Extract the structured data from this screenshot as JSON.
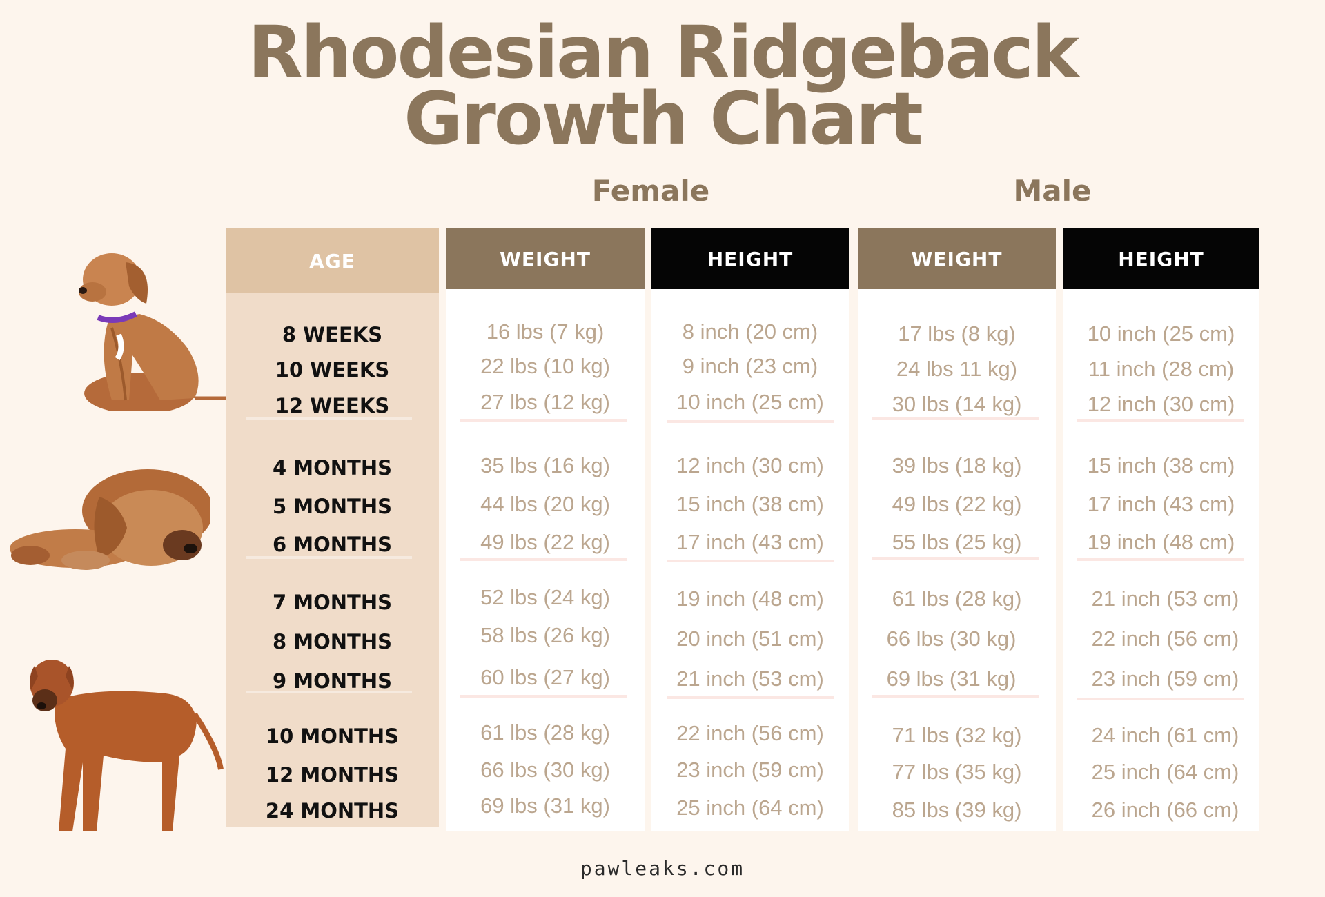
{
  "title_line1": "Rhodesian Ridgeback",
  "title_line2": "Growth Chart",
  "groups": {
    "female": "Female",
    "male": "Male"
  },
  "headers": {
    "age": "AGE",
    "female_weight": "WEIGHT",
    "female_height": "HEIGHT",
    "male_weight": "WEIGHT",
    "male_height": "HEIGHT"
  },
  "rows": [
    {
      "age": "8 WEEKS",
      "fw": "16 lbs (7 kg)",
      "fh": "8 inch (20 cm)",
      "mw": "17 lbs (8 kg)",
      "mh": "10 inch (25 cm)"
    },
    {
      "age": "10 WEEKS",
      "fw": "22 lbs (10 kg)",
      "fh": "9 inch (23 cm)",
      "mw": "24 lbs 11 kg)",
      "mh": "11 inch (28 cm)"
    },
    {
      "age": "12 WEEKS",
      "fw": "27 lbs (12 kg)",
      "fh": "10 inch (25 cm)",
      "mw": "30 lbs (14 kg)",
      "mh": "12 inch (30 cm)"
    },
    {
      "age": "4 MONTHS",
      "fw": "35 lbs (16 kg)",
      "fh": "12 inch (30 cm)",
      "mw": "39 lbs (18 kg)",
      "mh": "15 inch (38 cm)"
    },
    {
      "age": "5 MONTHS",
      "fw": "44 lbs (20 kg)",
      "fh": "15 inch (38 cm)",
      "mw": "49 lbs (22 kg)",
      "mh": "17 inch (43 cm)"
    },
    {
      "age": "6 MONTHS",
      "fw": "49 lbs (22 kg)",
      "fh": "17 inch (43 cm)",
      "mw": "55 lbs (25 kg)",
      "mh": "19 inch (48 cm)"
    },
    {
      "age": "7 MONTHS",
      "fw": "52 lbs (24 kg)",
      "fh": "19 inch (48 cm)",
      "mw": "61 lbs (28 kg)",
      "mh": "21 inch (53 cm)"
    },
    {
      "age": "8 MONTHS",
      "fw": "58 lbs (26 kg)",
      "fh": "20 inch (51 cm)",
      "mw": "66 lbs (30 kg)",
      "mh": "22 inch (56 cm)"
    },
    {
      "age": "9 MONTHS",
      "fw": "60 lbs (27 kg)",
      "fh": "21 inch (53 cm)",
      "mw": "69 lbs (31 kg)",
      "mh": "23 inch (59 cm)"
    },
    {
      "age": "10 MONTHS",
      "fw": "61 lbs (28 kg)",
      "fh": "22 inch (56 cm)",
      "mw": "71 lbs (32 kg)",
      "mh": "24 inch (61 cm)"
    },
    {
      "age": "12 MONTHS",
      "fw": "66 lbs (30 kg)",
      "fh": "23 inch (59 cm)",
      "mw": "77 lbs (35 kg)",
      "mh": "25 inch (64 cm)"
    },
    {
      "age": "24 MONTHS",
      "fw": "69 lbs (31 kg)",
      "fh": "25 inch (64 cm)",
      "mw": "85 lbs (39 kg)",
      "mh": "26 inch (66 cm)"
    }
  ],
  "colors": {
    "background": "#fdf5ed",
    "title": "#8b765c",
    "age_header": "#dfc3a4",
    "age_body": "#f0dcc9",
    "weight_header": "#8b765c",
    "height_header": "#050505",
    "value_text": "#bba68f"
  },
  "images": [
    "puppy-sitting-photo",
    "puppy-lying-photo",
    "adult-dog-standing-photo"
  ],
  "footer": "pawleaks.com"
}
